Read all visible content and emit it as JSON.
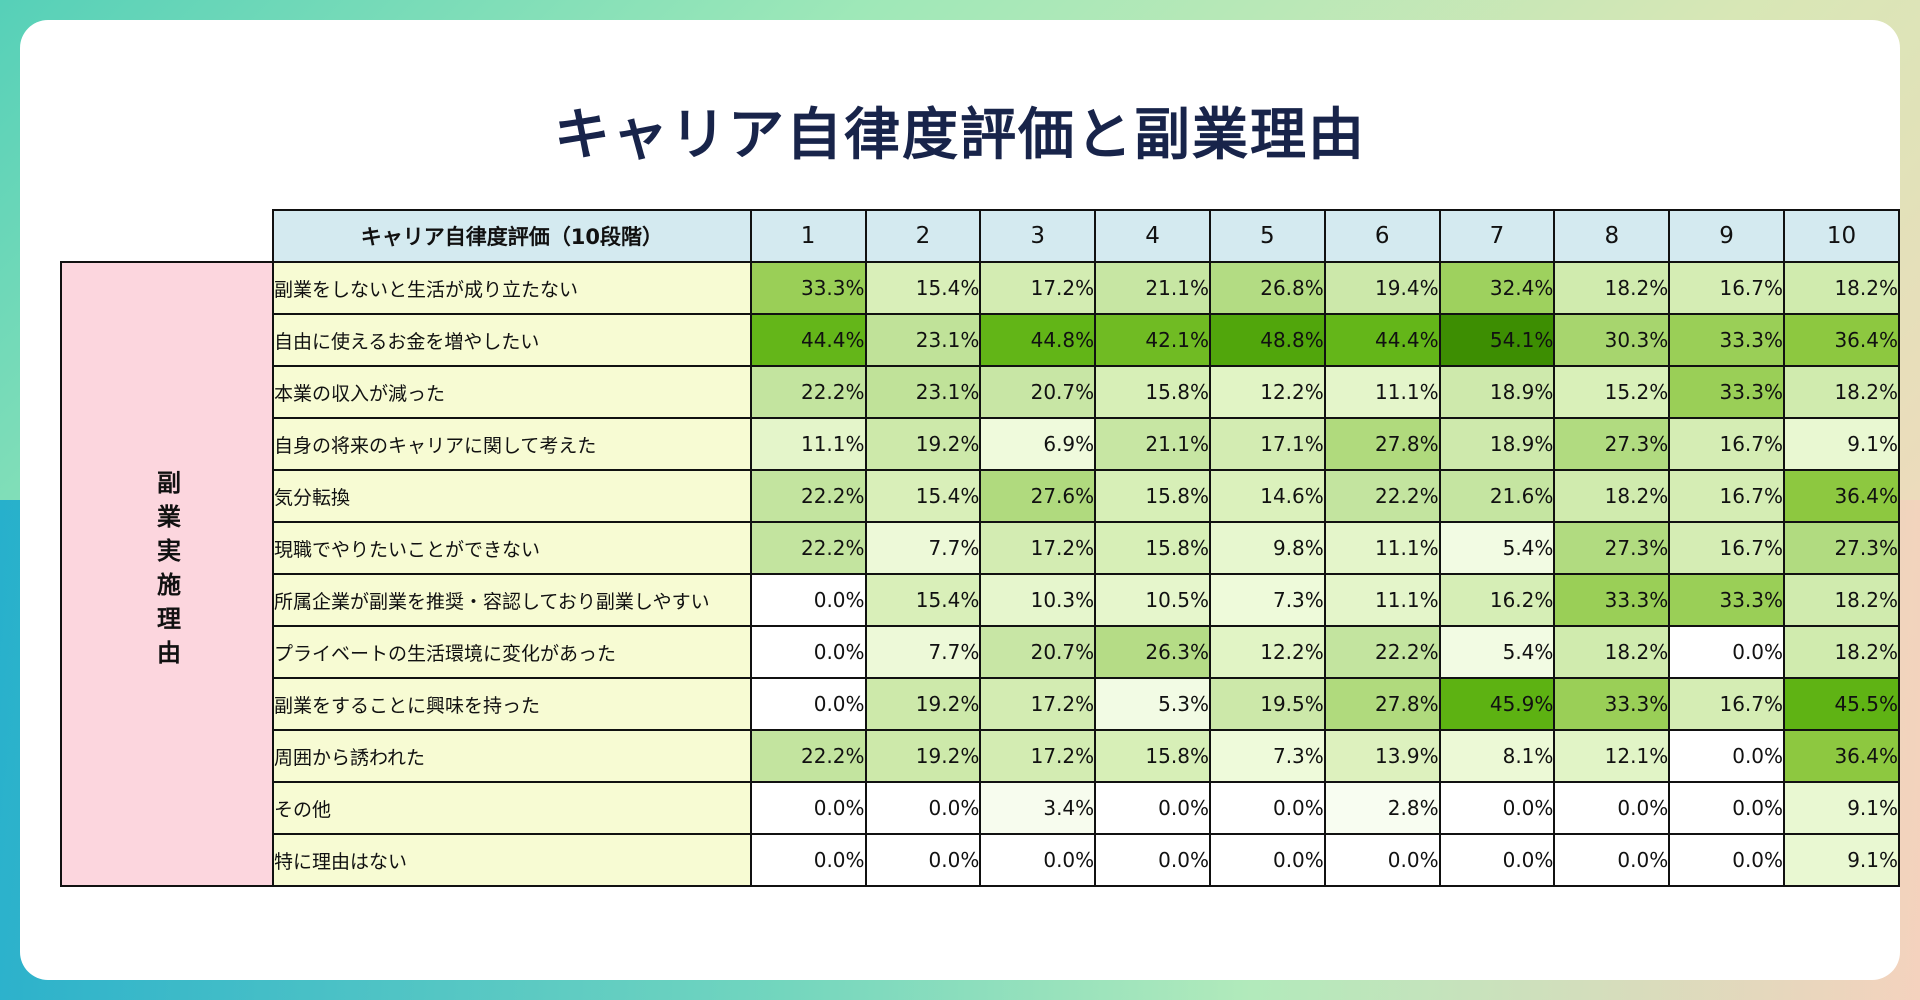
{
  "title": "キャリア自律度評価と副業理由",
  "chart_data": {
    "type": "heatmap",
    "title": "キャリア自律度評価と副業理由",
    "row_group_label": "副業実施理由",
    "column_header_label": "キャリア自律度評価（10段階）",
    "columns": [
      "1",
      "2",
      "3",
      "4",
      "5",
      "6",
      "7",
      "8",
      "9",
      "10"
    ],
    "unit": "%",
    "rows": [
      {
        "label": "副業をしないと生活が成り立たない",
        "values": [
          33.3,
          15.4,
          17.2,
          21.1,
          26.8,
          19.4,
          32.4,
          18.2,
          16.7,
          18.2
        ]
      },
      {
        "label": "自由に使えるお金を増やしたい",
        "values": [
          44.4,
          23.1,
          44.8,
          42.1,
          48.8,
          44.4,
          54.1,
          30.3,
          33.3,
          36.4
        ]
      },
      {
        "label": "本業の収入が減った",
        "values": [
          22.2,
          23.1,
          20.7,
          15.8,
          12.2,
          11.1,
          18.9,
          15.2,
          33.3,
          18.2
        ]
      },
      {
        "label": "自身の将来のキャリアに関して考えた",
        "values": [
          11.1,
          19.2,
          6.9,
          21.1,
          17.1,
          27.8,
          18.9,
          27.3,
          16.7,
          9.1
        ]
      },
      {
        "label": "気分転換",
        "values": [
          22.2,
          15.4,
          27.6,
          15.8,
          14.6,
          22.2,
          21.6,
          18.2,
          16.7,
          36.4
        ]
      },
      {
        "label": "現職でやりたいことができない",
        "values": [
          22.2,
          7.7,
          17.2,
          15.8,
          9.8,
          11.1,
          5.4,
          27.3,
          16.7,
          27.3
        ]
      },
      {
        "label": "所属企業が副業を推奨・容認しており副業しやすい",
        "values": [
          0.0,
          15.4,
          10.3,
          10.5,
          7.3,
          11.1,
          16.2,
          33.3,
          33.3,
          18.2
        ]
      },
      {
        "label": "プライベートの生活環境に変化があった",
        "values": [
          0.0,
          7.7,
          20.7,
          26.3,
          12.2,
          22.2,
          5.4,
          18.2,
          0.0,
          18.2
        ]
      },
      {
        "label": "副業をすることに興味を持った",
        "values": [
          0.0,
          19.2,
          17.2,
          5.3,
          19.5,
          27.8,
          45.9,
          33.3,
          16.7,
          45.5
        ]
      },
      {
        "label": "周囲から誘われた",
        "values": [
          22.2,
          19.2,
          17.2,
          15.8,
          7.3,
          13.9,
          8.1,
          12.1,
          0.0,
          36.4
        ]
      },
      {
        "label": "その他",
        "values": [
          0.0,
          0.0,
          3.4,
          0.0,
          0.0,
          2.8,
          0.0,
          0.0,
          0.0,
          9.1
        ]
      },
      {
        "label": "特に理由はない",
        "values": [
          0.0,
          0.0,
          0.0,
          0.0,
          0.0,
          0.0,
          0.0,
          0.0,
          0.0,
          9.1
        ]
      }
    ],
    "colors": {
      "header_bg": "#d4eaf0",
      "row_label_bg": "#f7fbd3",
      "group_label_bg": "#fcd6de",
      "scale_low": "#ffffff",
      "scale_high": "#3a8a00"
    }
  }
}
